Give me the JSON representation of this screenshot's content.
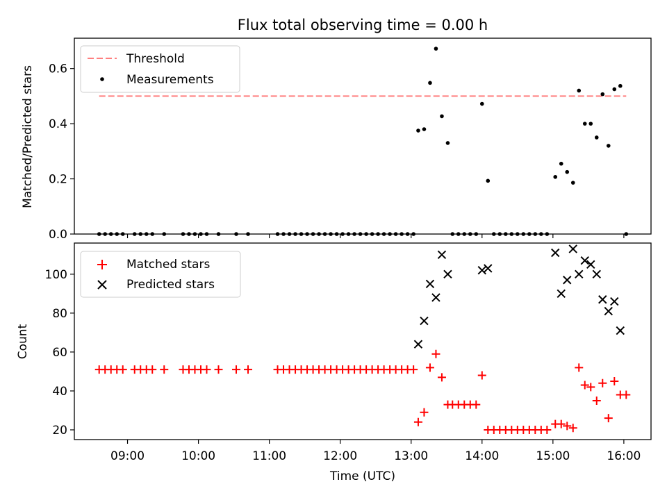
{
  "chart_data": [
    {
      "type": "scatter",
      "title": "Flux total observing time = 0.00 h",
      "xlabel": "",
      "ylabel": "Matched/Predicted stars",
      "xlim": [
        "08:15",
        "16:23"
      ],
      "ylim": [
        0,
        0.71
      ],
      "yticks": [
        0.0,
        0.2,
        0.4,
        0.6
      ],
      "ytick_labels": [
        "0.0",
        "0.2",
        "0.4",
        "0.6"
      ],
      "grid": false,
      "legend_position": "upper-left",
      "threshold": {
        "name": "Threshold",
        "value": 0.5,
        "x_start": "08:36",
        "x_end": "16:02",
        "color": "#ff7f7f",
        "style": "dashed"
      },
      "series": [
        {
          "name": "Measurements",
          "color": "#000000",
          "marker": "dot",
          "points": [
            [
              "08:36",
              0
            ],
            [
              "08:41",
              0
            ],
            [
              "08:46",
              0
            ],
            [
              "08:51",
              0
            ],
            [
              "08:56",
              0
            ],
            [
              "09:06",
              0
            ],
            [
              "09:11",
              0
            ],
            [
              "09:16",
              0
            ],
            [
              "09:21",
              0
            ],
            [
              "09:31",
              0
            ],
            [
              "09:47",
              0
            ],
            [
              "09:52",
              0
            ],
            [
              "09:57",
              0
            ],
            [
              "10:02",
              0
            ],
            [
              "10:07",
              0
            ],
            [
              "10:17",
              0
            ],
            [
              "10:32",
              0
            ],
            [
              "10:42",
              0
            ],
            [
              "11:07",
              0
            ],
            [
              "11:12",
              0
            ],
            [
              "11:17",
              0
            ],
            [
              "11:22",
              0
            ],
            [
              "11:27",
              0
            ],
            [
              "11:32",
              0
            ],
            [
              "11:37",
              0
            ],
            [
              "11:42",
              0
            ],
            [
              "11:47",
              0
            ],
            [
              "11:52",
              0
            ],
            [
              "11:57",
              0
            ],
            [
              "12:02",
              0
            ],
            [
              "12:07",
              0
            ],
            [
              "12:12",
              0
            ],
            [
              "12:17",
              0
            ],
            [
              "12:22",
              0
            ],
            [
              "12:27",
              0
            ],
            [
              "12:32",
              0
            ],
            [
              "12:37",
              0
            ],
            [
              "12:42",
              0
            ],
            [
              "12:47",
              0
            ],
            [
              "12:52",
              0
            ],
            [
              "12:57",
              0
            ],
            [
              "13:02",
              0
            ],
            [
              "13:06",
              0.375
            ],
            [
              "13:11",
              0.38
            ],
            [
              "13:16",
              0.548
            ],
            [
              "13:21",
              0.672
            ],
            [
              "13:26",
              0.427
            ],
            [
              "13:31",
              0.33
            ],
            [
              "13:35",
              0
            ],
            [
              "13:40",
              0
            ],
            [
              "13:45",
              0
            ],
            [
              "13:50",
              0
            ],
            [
              "13:55",
              0
            ],
            [
              "14:00",
              0.472
            ],
            [
              "14:05",
              0.193
            ],
            [
              "14:10",
              0
            ],
            [
              "14:15",
              0
            ],
            [
              "14:20",
              0
            ],
            [
              "14:25",
              0
            ],
            [
              "14:30",
              0
            ],
            [
              "14:35",
              0
            ],
            [
              "14:40",
              0
            ],
            [
              "14:45",
              0
            ],
            [
              "14:50",
              0
            ],
            [
              "14:55",
              0
            ],
            [
              "15:02",
              0.207
            ],
            [
              "15:07",
              0.255
            ],
            [
              "15:12",
              0.225
            ],
            [
              "15:17",
              0.186
            ],
            [
              "15:22",
              0.52
            ],
            [
              "15:27",
              0.4
            ],
            [
              "15:32",
              0.4
            ],
            [
              "15:37",
              0.35
            ],
            [
              "15:42",
              0.507
            ],
            [
              "15:47",
              0.32
            ],
            [
              "15:52",
              0.525
            ],
            [
              "15:57",
              0.537
            ],
            [
              "16:02",
              0
            ]
          ]
        }
      ]
    },
    {
      "type": "scatter",
      "title": "",
      "xlabel": "Time (UTC)",
      "ylabel": "Count",
      "xlim": [
        "08:15",
        "16:23"
      ],
      "ylim": [
        15,
        116
      ],
      "yticks": [
        20,
        40,
        60,
        80,
        100
      ],
      "ytick_labels": [
        "20",
        "40",
        "60",
        "80",
        "100"
      ],
      "xticks": [
        "09:00",
        "10:00",
        "11:00",
        "12:00",
        "13:00",
        "14:00",
        "15:00",
        "16:00"
      ],
      "xtick_labels": [
        "09:00",
        "10:00",
        "11:00",
        "12:00",
        "13:00",
        "14:00",
        "15:00",
        "16:00"
      ],
      "grid": false,
      "legend_position": "upper-left",
      "series": [
        {
          "name": "Matched stars",
          "color": "#ff0000",
          "marker": "plus",
          "points": [
            [
              "08:36",
              51
            ],
            [
              "08:41",
              51
            ],
            [
              "08:46",
              51
            ],
            [
              "08:51",
              51
            ],
            [
              "08:56",
              51
            ],
            [
              "09:06",
              51
            ],
            [
              "09:11",
              51
            ],
            [
              "09:16",
              51
            ],
            [
              "09:21",
              51
            ],
            [
              "09:31",
              51
            ],
            [
              "09:47",
              51
            ],
            [
              "09:52",
              51
            ],
            [
              "09:57",
              51
            ],
            [
              "10:02",
              51
            ],
            [
              "10:07",
              51
            ],
            [
              "10:17",
              51
            ],
            [
              "10:32",
              51
            ],
            [
              "10:42",
              51
            ],
            [
              "11:07",
              51
            ],
            [
              "11:12",
              51
            ],
            [
              "11:17",
              51
            ],
            [
              "11:22",
              51
            ],
            [
              "11:27",
              51
            ],
            [
              "11:32",
              51
            ],
            [
              "11:37",
              51
            ],
            [
              "11:42",
              51
            ],
            [
              "11:47",
              51
            ],
            [
              "11:52",
              51
            ],
            [
              "11:57",
              51
            ],
            [
              "12:02",
              51
            ],
            [
              "12:07",
              51
            ],
            [
              "12:12",
              51
            ],
            [
              "12:17",
              51
            ],
            [
              "12:22",
              51
            ],
            [
              "12:27",
              51
            ],
            [
              "12:32",
              51
            ],
            [
              "12:37",
              51
            ],
            [
              "12:42",
              51
            ],
            [
              "12:47",
              51
            ],
            [
              "12:52",
              51
            ],
            [
              "12:57",
              51
            ],
            [
              "13:02",
              51
            ],
            [
              "13:06",
              24
            ],
            [
              "13:11",
              29
            ],
            [
              "13:16",
              52
            ],
            [
              "13:21",
              59
            ],
            [
              "13:26",
              47
            ],
            [
              "13:31",
              33
            ],
            [
              "13:35",
              33
            ],
            [
              "13:40",
              33
            ],
            [
              "13:45",
              33
            ],
            [
              "13:50",
              33
            ],
            [
              "13:55",
              33
            ],
            [
              "14:00",
              48
            ],
            [
              "14:05",
              20
            ],
            [
              "14:10",
              20
            ],
            [
              "14:15",
              20
            ],
            [
              "14:20",
              20
            ],
            [
              "14:25",
              20
            ],
            [
              "14:30",
              20
            ],
            [
              "14:35",
              20
            ],
            [
              "14:40",
              20
            ],
            [
              "14:45",
              20
            ],
            [
              "14:50",
              20
            ],
            [
              "14:55",
              20
            ],
            [
              "15:02",
              23
            ],
            [
              "15:07",
              23
            ],
            [
              "15:12",
              22
            ],
            [
              "15:17",
              21
            ],
            [
              "15:22",
              52
            ],
            [
              "15:27",
              43
            ],
            [
              "15:32",
              42
            ],
            [
              "15:37",
              35
            ],
            [
              "15:42",
              44
            ],
            [
              "15:47",
              26
            ],
            [
              "15:52",
              45
            ],
            [
              "15:57",
              38
            ],
            [
              "16:02",
              38
            ]
          ]
        },
        {
          "name": "Predicted stars",
          "color": "#000000",
          "marker": "x",
          "points": [
            [
              "13:06",
              64
            ],
            [
              "13:11",
              76
            ],
            [
              "13:16",
              95
            ],
            [
              "13:21",
              88
            ],
            [
              "13:26",
              110
            ],
            [
              "13:31",
              100
            ],
            [
              "14:00",
              102
            ],
            [
              "14:05",
              103
            ],
            [
              "15:02",
              111
            ],
            [
              "15:07",
              90
            ],
            [
              "15:12",
              97
            ],
            [
              "15:17",
              113
            ],
            [
              "15:22",
              100
            ],
            [
              "15:27",
              107
            ],
            [
              "15:32",
              105
            ],
            [
              "15:37",
              100
            ],
            [
              "15:42",
              87
            ],
            [
              "15:47",
              81
            ],
            [
              "15:52",
              86
            ],
            [
              "15:57",
              71
            ]
          ]
        }
      ]
    }
  ]
}
